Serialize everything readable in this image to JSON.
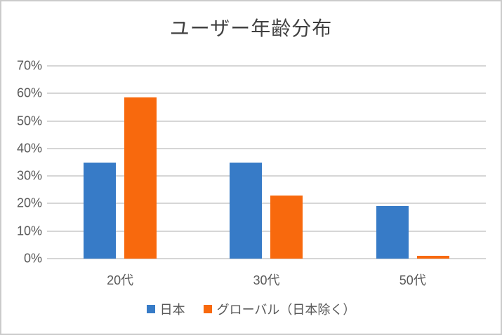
{
  "chart": {
    "background_color": "#FFFFFF",
    "border_color": "#CBCBCB",
    "title_color": "#404040",
    "axis_text_color": "#595959",
    "gridline_color": "#D6D6D6"
  },
  "chart_data": {
    "type": "bar",
    "title": "ユーザー年齢分布",
    "categories": [
      "20代",
      "30代",
      "50代"
    ],
    "series": [
      {
        "name": "日本",
        "slug": "japan",
        "color": "#377BC7",
        "values": [
          35,
          35,
          19
        ]
      },
      {
        "name": "グローバル（日本除く）",
        "slug": "global-excluding-japan",
        "color": "#F8690D",
        "values": [
          58.5,
          23,
          1
        ]
      }
    ],
    "xlabel": "",
    "ylabel": "",
    "ylim": [
      0,
      70
    ],
    "ytick_step": 10,
    "yticks": [
      "0%",
      "10%",
      "20%",
      "30%",
      "40%",
      "50%",
      "60%",
      "70%"
    ],
    "grid": true,
    "legend_position": "bottom"
  }
}
